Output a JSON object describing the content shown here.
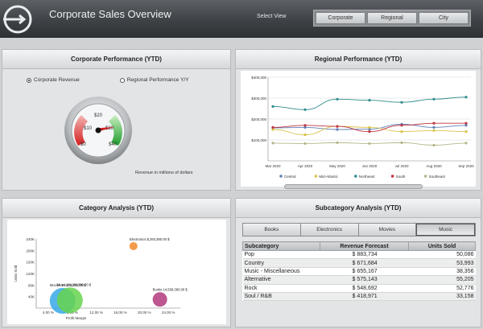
{
  "header": {
    "title": "Corporate Sales Overview",
    "select_label": "Select View",
    "views": [
      "Corporate",
      "Regional",
      "City"
    ]
  },
  "corporate": {
    "title": "Corporate Performance (YTD)",
    "radio_revenue": "Corporate Revenue",
    "radio_regional": "Regional Performance Y/Y",
    "gauge_ticks": [
      "$10",
      "$20",
      "$30",
      "$40",
      "$0"
    ],
    "gauge_value": 32,
    "gauge_note": "Revenue in millions of dollars"
  },
  "regional": {
    "title": "Regional Performance (YTD)",
    "chart_data": {
      "type": "line",
      "categories": [
        "Mar 2020",
        "Apr 2020",
        "May 2020",
        "Jun 2020",
        "Jul 2020",
        "Aug 2020",
        "Sep 2020"
      ],
      "y_ticks": [
        "$400,000",
        "$300,000",
        "$200,000",
        "$100,000"
      ],
      "ylim": [
        0,
        400000
      ],
      "series": [
        {
          "name": "Central",
          "color": "#5f7fb8",
          "values": [
            158000,
            160000,
            150000,
            152000,
            175000,
            160000,
            170000
          ]
        },
        {
          "name": "Mid-Atlantic",
          "color": "#d9c24a",
          "values": [
            150000,
            125000,
            165000,
            160000,
            140000,
            145000,
            140000
          ]
        },
        {
          "name": "Northeast",
          "color": "#2f8c8c",
          "values": [
            260000,
            245000,
            295000,
            290000,
            280000,
            295000,
            305000
          ]
        },
        {
          "name": "South",
          "color": "#c0333e",
          "values": [
            160000,
            170000,
            165000,
            140000,
            170000,
            180000,
            180000
          ]
        },
        {
          "name": "Southeast",
          "color": "#b5b58a",
          "values": [
            85000,
            83000,
            87000,
            83000,
            87000,
            75000,
            85000
          ]
        }
      ],
      "legend": "bottom"
    }
  },
  "category": {
    "title": "Category Analysis (YTD)",
    "chart_data": {
      "type": "scatter",
      "xlabel": "Profit Margin",
      "ylabel": "Units Sold",
      "x_ticks": [
        "4.00 %",
        "8.00 %",
        "12.00 %",
        "16.00 %",
        "20.00 %",
        "24.00 %"
      ],
      "y_ticks": [
        "240K",
        "200K",
        "160K",
        "120K",
        "80K",
        "40K"
      ],
      "xlim": [
        2,
        26
      ],
      "ylim": [
        0,
        240000
      ],
      "points": [
        {
          "label": "Electronics $,293,380.00 $",
          "x": 18.2,
          "y": 215000,
          "size": 5,
          "color": "#f08a2c"
        },
        {
          "label": "Books 14,509,380.00 $",
          "x": 22.6,
          "y": 30000,
          "size": 9,
          "color": "#b3387e"
        },
        {
          "label": "Movies 24,609,380.00 $",
          "x": 6.4,
          "y": 25000,
          "size": 16,
          "color": "#37a8e6"
        },
        {
          "label": "Music 28,109,380.00 $",
          "x": 7.6,
          "y": 27000,
          "size": 16,
          "color": "#66d44e"
        }
      ]
    }
  },
  "subcategory": {
    "title": "Subcategory Analysis (YTD)",
    "tabs": [
      "Books",
      "Electronics",
      "Movies",
      "Music"
    ],
    "active_tab": 3,
    "columns": [
      "Subcategory",
      "Revenue Forecast",
      "Units Sold"
    ],
    "rows": [
      [
        "Pop",
        "$ 883,734",
        "50,086"
      ],
      [
        "Country",
        "$ 671,684",
        "53,993"
      ],
      [
        "Music - Miscellaneous",
        "$ 655,167",
        "38,356"
      ],
      [
        "Alternative",
        "$ 575,143",
        "55,205"
      ],
      [
        "Rock",
        "$ 548,692",
        "52,776"
      ],
      [
        "Soul / R&B",
        "$ 418,971",
        "33,158"
      ]
    ]
  }
}
